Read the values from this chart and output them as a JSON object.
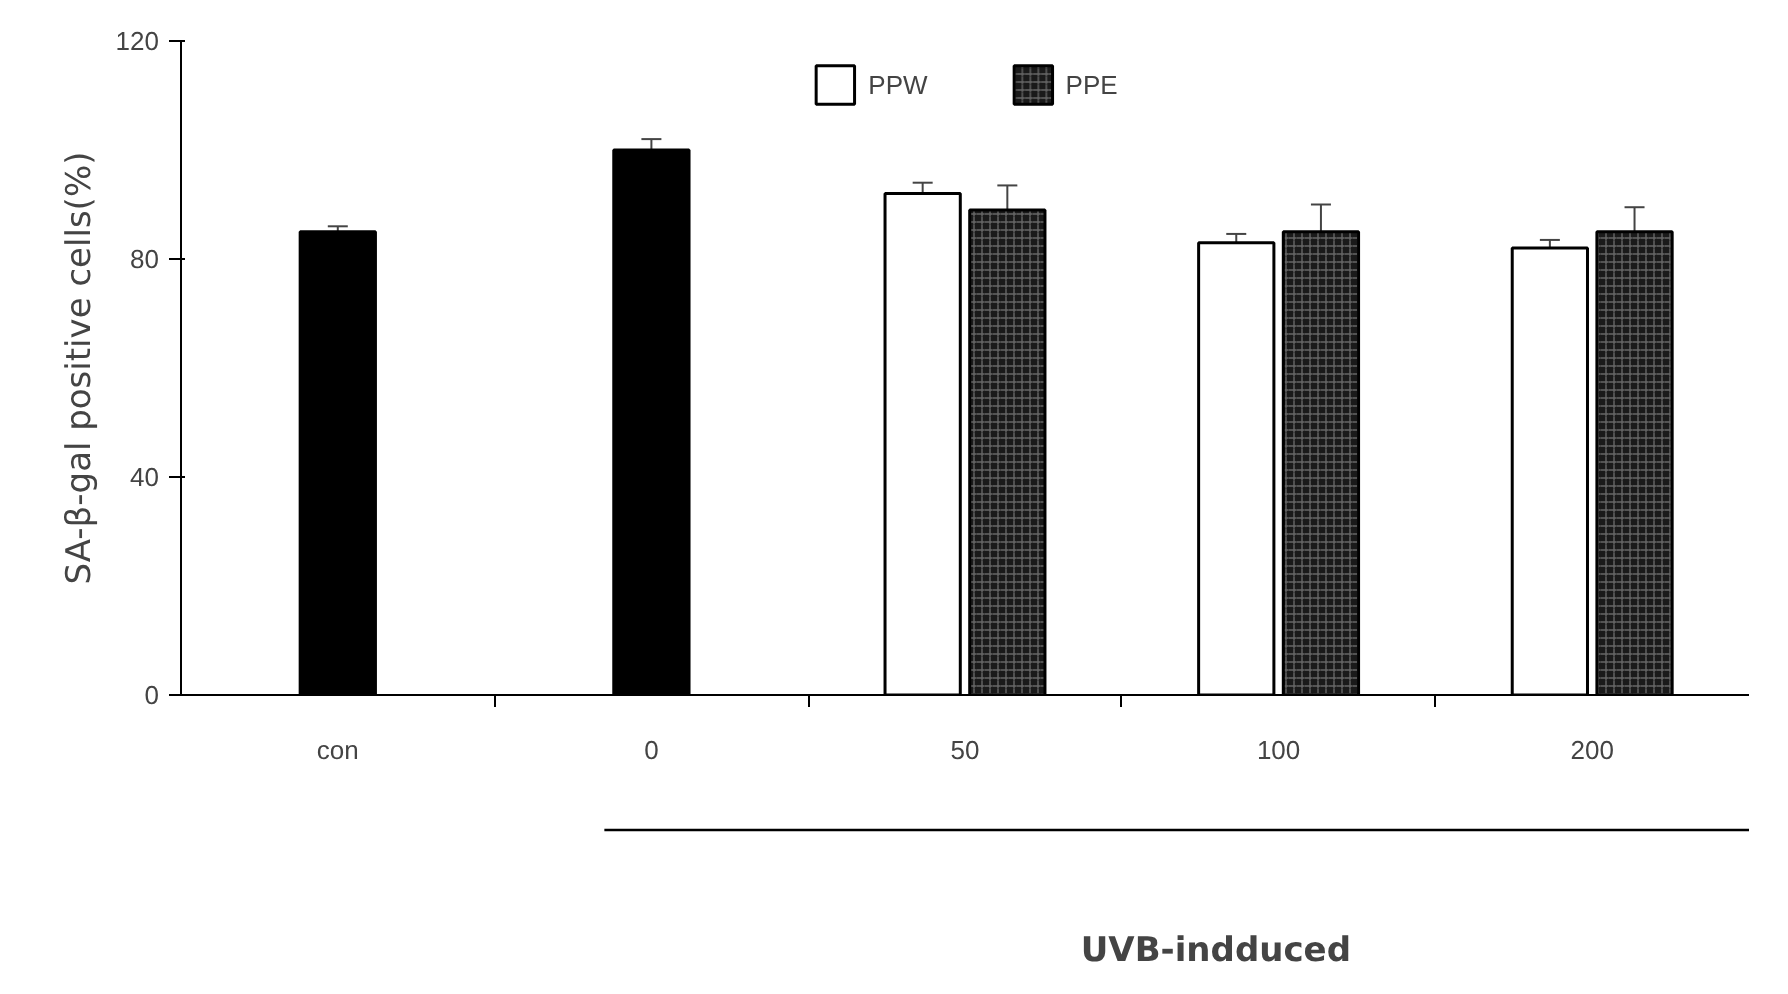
{
  "chart_data": {
    "type": "bar",
    "ylabel": "SA-β-gal positive cells(%)",
    "categories": [
      "con",
      "0",
      "50",
      "100",
      "200"
    ],
    "series": [
      {
        "color": "#000000",
        "values": [
          85,
          100,
          null,
          null,
          null
        ],
        "errors": [
          1,
          2,
          null,
          null,
          null
        ]
      },
      {
        "name": "PPW",
        "color": "#ffffff",
        "values": [
          null,
          null,
          92,
          83,
          82
        ],
        "errors": [
          null,
          null,
          2,
          1.6,
          1.5
        ]
      },
      {
        "name": "PPE",
        "color": "#1a1a1a",
        "values": [
          null,
          null,
          89,
          85,
          85
        ],
        "errors": [
          null,
          null,
          4.5,
          5,
          4.5
        ]
      }
    ],
    "ylim": [
      0,
      120
    ],
    "yticks": [
      0,
      40,
      80,
      120
    ],
    "grid": false,
    "legend": "top",
    "annotations": [
      "UVB-indduced"
    ]
  }
}
